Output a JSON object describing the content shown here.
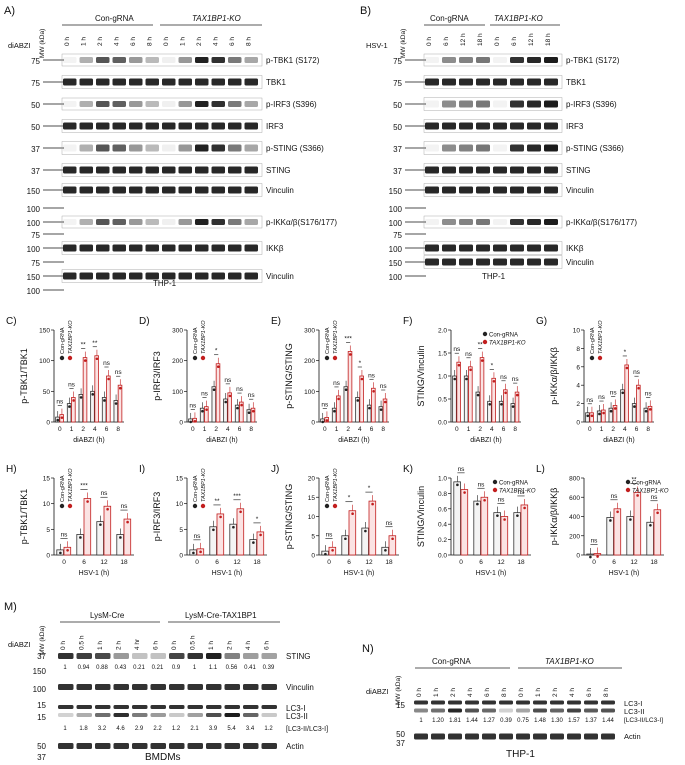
{
  "colors": {
    "con": "#222222",
    "ko": "#c21e1e",
    "band": "#1c1c1c"
  },
  "panel_a": {
    "letter": "A)",
    "mw": "MW (kDa)",
    "groups": [
      "Con-gRNA",
      "TAX1BP1-KO"
    ],
    "treat": "diABZI",
    "times": [
      "0 h",
      "1 h",
      "2 h",
      "4 h",
      "6 h",
      "8 h"
    ],
    "cell": "THP-1",
    "rows": [
      {
        "mw": "75",
        "label": "p-TBK1 (S172)"
      },
      {
        "mw": "75",
        "label": "TBK1"
      },
      {
        "mw": "50",
        "label": "p-IRF3 (S396)"
      },
      {
        "mw": "50",
        "label": "IRF3"
      },
      {
        "mw": "37",
        "label": "p-STING (S366)"
      },
      {
        "mw": "37",
        "label": "STING"
      },
      {
        "mw": "150",
        "label": "Vinculin"
      },
      {
        "mw": "100",
        "label": ""
      },
      {
        "mw": "100",
        "label": "p-IKKα/β(S176/177)"
      },
      {
        "mw": "75",
        "label": ""
      },
      {
        "mw": "100",
        "label": "IKKβ"
      },
      {
        "mw": "75",
        "label": ""
      },
      {
        "mw": "150",
        "label": "Vinculin"
      },
      {
        "mw": "100",
        "label": ""
      }
    ]
  },
  "panel_b": {
    "letter": "B)",
    "mw": "MW (kDa)",
    "groups": [
      "Con-gRNA",
      "TAX1BP1-KO"
    ],
    "treat": "HSV-1",
    "times": [
      "0 h",
      "6 h",
      "12 h",
      "18 h"
    ],
    "cell": "THP-1",
    "rows": [
      {
        "mw": "75",
        "label": "p-TBK1 (S172)"
      },
      {
        "mw": "75",
        "label": "TBK1"
      },
      {
        "mw": "50",
        "label": "p-IRF3 (S396)"
      },
      {
        "mw": "50",
        "label": "IRF3"
      },
      {
        "mw": "37",
        "label": "p-STING (S366)"
      },
      {
        "mw": "37",
        "label": "STING"
      },
      {
        "mw": "150",
        "label": "Vinculin"
      },
      {
        "mw": "100",
        "label": ""
      },
      {
        "mw": "100",
        "label": "p-IKKα/β(S176/177)"
      },
      {
        "mw": "75",
        "label": ""
      },
      {
        "mw": "100",
        "label": "IKKβ"
      },
      {
        "mw": "150",
        "label": "Vinculin"
      },
      {
        "mw": "100",
        "label": ""
      }
    ]
  },
  "chart_data": [
    {
      "panel": "C)",
      "type": "bar",
      "ylabel": "p-TBK1/TBK1",
      "xlabel": "diABZI (h)",
      "categories": [
        "0",
        "1",
        "2",
        "4",
        "6",
        "8"
      ],
      "ylim": [
        0,
        150
      ],
      "yticks": [
        "0",
        "50",
        "100",
        "150"
      ],
      "legend": [
        "Con-gRNA",
        "TAX1BP1-KO"
      ],
      "series": [
        {
          "name": "Con-gRNA",
          "values": [
            8,
            30,
            45,
            50,
            40,
            35
          ]
        },
        {
          "name": "TAX1BP1-KO",
          "values": [
            12,
            40,
            105,
            108,
            75,
            60
          ]
        }
      ],
      "sig": [
        "ns",
        "ns",
        "**",
        "**",
        "ns",
        "ns"
      ]
    },
    {
      "panel": "D)",
      "type": "bar",
      "ylabel": "p-IRF3/IRF3",
      "xlabel": "diABZI (h)",
      "categories": [
        "0",
        "1",
        "2",
        "4",
        "6",
        "8"
      ],
      "ylim": [
        0,
        300
      ],
      "yticks": [
        "0",
        "100",
        "200",
        "300"
      ],
      "legend": [
        "Con-gRNA",
        "TAX1BP1-KO"
      ],
      "series": [
        {
          "name": "Con-gRNA",
          "values": [
            10,
            45,
            115,
            75,
            55,
            40
          ]
        },
        {
          "name": "TAX1BP1-KO",
          "values": [
            12,
            50,
            190,
            95,
            65,
            45
          ]
        }
      ],
      "sig": [
        "ns",
        "ns",
        "*",
        "ns",
        "ns",
        "ns"
      ]
    },
    {
      "panel": "E)",
      "type": "bar",
      "ylabel": "p-STING/STING",
      "xlabel": "diABZI (h)",
      "categories": [
        "0",
        "1",
        "2",
        "4",
        "6",
        "8"
      ],
      "ylim": [
        0,
        300
      ],
      "yticks": [
        "0",
        "100",
        "200",
        "300"
      ],
      "legend": [
        "Con-gRNA",
        "TAX1BP1-KO"
      ],
      "series": [
        {
          "name": "Con-gRNA",
          "values": [
            10,
            45,
            115,
            80,
            55,
            50
          ]
        },
        {
          "name": "TAX1BP1-KO",
          "values": [
            15,
            85,
            230,
            150,
            110,
            75
          ]
        }
      ],
      "sig": [
        "ns",
        "ns",
        "***",
        "*",
        "ns",
        "ns"
      ]
    },
    {
      "panel": "F)",
      "type": "bar",
      "ylabel": "STING/Vinculin",
      "xlabel": "diABZI (h)",
      "categories": [
        "0",
        "1",
        "2",
        "4",
        "6",
        "8"
      ],
      "ylim": [
        0,
        2.0
      ],
      "yticks": [
        "0.0",
        "0.5",
        "1.0",
        "1.5",
        "2.0"
      ],
      "legend": [
        "Con-gRNA",
        "TAX1BP1-KO"
      ],
      "series": [
        {
          "name": "Con-gRNA",
          "values": [
            1.0,
            1.0,
            0.65,
            0.45,
            0.45,
            0.4
          ]
        },
        {
          "name": "TAX1BP1-KO",
          "values": [
            1.3,
            1.2,
            1.4,
            0.95,
            0.7,
            0.65
          ]
        }
      ],
      "sig": [
        "ns",
        "ns",
        "**",
        "*",
        "ns",
        "ns"
      ]
    },
    {
      "panel": "G)",
      "type": "bar",
      "ylabel": "p-IKKα/β/IKKβ",
      "xlabel": "diABZI (h)",
      "categories": [
        "0",
        "1",
        "2",
        "4",
        "6",
        "8"
      ],
      "ylim": [
        0,
        10
      ],
      "yticks": [
        "0",
        "2",
        "4",
        "6",
        "8",
        "10"
      ],
      "legend": [
        "Con-gRNA",
        "TAX1BP1-KO"
      ],
      "series": [
        {
          "name": "Con-gRNA",
          "values": [
            1,
            1.2,
            1.5,
            3.5,
            2,
            1.5
          ]
        },
        {
          "name": "TAX1BP1-KO",
          "values": [
            1,
            1.3,
            1.8,
            6.2,
            4,
            1.7
          ]
        }
      ],
      "sig": [
        "ns",
        "ns",
        "ns",
        "*",
        "ns",
        "ns"
      ]
    },
    {
      "panel": "H)",
      "type": "bar",
      "ylabel": "p-TBK1/TBK1",
      "xlabel": "HSV-1 (h)",
      "categories": [
        "0",
        "6",
        "12",
        "18"
      ],
      "ylim": [
        0,
        15
      ],
      "yticks": [
        "0",
        "5",
        "10",
        "15"
      ],
      "legend": [
        "Con-gRNA",
        "TAX1BP1-KO"
      ],
      "series": [
        {
          "name": "Con-gRNA",
          "values": [
            1,
            4,
            6.5,
            4
          ]
        },
        {
          "name": "TAX1BP1-KO",
          "values": [
            1.5,
            11,
            9.5,
            7
          ]
        }
      ],
      "sig": [
        "ns",
        "***",
        "ns",
        "ns"
      ]
    },
    {
      "panel": "I)",
      "type": "bar",
      "ylabel": "p-IRF3/IRF3",
      "xlabel": "HSV-1 (h)",
      "categories": [
        "0",
        "6",
        "12",
        "18"
      ],
      "ylim": [
        0,
        15
      ],
      "yticks": [
        "0",
        "5",
        "10",
        "15"
      ],
      "legend": [
        "Con-gRNA",
        "TAX1BP1-KO"
      ],
      "series": [
        {
          "name": "Con-gRNA",
          "values": [
            1,
            5.5,
            6,
            3
          ]
        },
        {
          "name": "TAX1BP1-KO",
          "values": [
            1.2,
            8,
            9,
            4.5
          ]
        }
      ],
      "sig": [
        "ns",
        "**",
        "***",
        "*"
      ]
    },
    {
      "panel": "J)",
      "type": "bar",
      "ylabel": "p-STING/STING",
      "xlabel": "HSV-1 (h)",
      "categories": [
        "0",
        "6",
        "12",
        "18"
      ],
      "ylim": [
        0,
        20
      ],
      "yticks": [
        "0",
        "5",
        "10",
        "15",
        "20"
      ],
      "legend": [
        "Con-gRNA",
        "TAX1BP1-KO"
      ],
      "series": [
        {
          "name": "Con-gRNA",
          "values": [
            1,
            5,
            7,
            2
          ]
        },
        {
          "name": "TAX1BP1-KO",
          "values": [
            2,
            11.5,
            14,
            5
          ]
        }
      ],
      "sig": [
        "ns",
        "*",
        "*",
        "ns"
      ]
    },
    {
      "panel": "K)",
      "type": "bar",
      "ylabel": "STING/Vinculin",
      "xlabel": "HSV-1 (h)",
      "categories": [
        "0",
        "6",
        "12",
        "18"
      ],
      "ylim": [
        0,
        1.0
      ],
      "yticks": [
        "0.0",
        "0.2",
        "0.4",
        "0.6",
        "0.8",
        "1.0"
      ],
      "legend": [
        "Con-gRNA",
        "TAX1BP1-KO"
      ],
      "series": [
        {
          "name": "Con-gRNA",
          "values": [
            0.95,
            0.7,
            0.55,
            0.55
          ]
        },
        {
          "name": "TAX1BP1-KO",
          "values": [
            0.85,
            0.75,
            0.5,
            0.65
          ]
        }
      ],
      "sig": [
        "ns",
        "ns",
        "ns",
        "ns"
      ]
    },
    {
      "panel": "L)",
      "type": "bar",
      "ylabel": "p-IKKα/β/IKKβ",
      "xlabel": "HSV-1 (h)",
      "categories": [
        "0",
        "6",
        "12",
        "18"
      ],
      "ylim": [
        0,
        800
      ],
      "yticks": [
        "0",
        "200",
        "400",
        "600",
        "800"
      ],
      "legend": [
        "Con-gRNA",
        "TAX1BP1-KO"
      ],
      "series": [
        {
          "name": "Con-gRNA",
          "values": [
            10,
            390,
            400,
            340
          ]
        },
        {
          "name": "TAX1BP1-KO",
          "values": [
            15,
            480,
            650,
            470
          ]
        }
      ],
      "sig": [
        "ns",
        "ns",
        "**",
        "ns"
      ]
    }
  ],
  "panel_m": {
    "letter": "M)",
    "mw": "MW (kDa)",
    "groups": [
      "LysM-Cre",
      "LysM-Cre-TAX1BP1"
    ],
    "treat": "diABZI",
    "times": [
      "0 h",
      "0.5 h",
      "1 h",
      "2 h",
      "4 hr",
      "6 h",
      "0 h",
      "0.5 h",
      "1 h",
      "2 h",
      "4 h",
      "6 h"
    ],
    "cell": "BMDMs",
    "rows": [
      {
        "mw": "37",
        "label": "STING"
      },
      {
        "mw": "100",
        "label": "Vinculin"
      },
      {
        "mw": "15",
        "label": "LC3-I"
      },
      {
        "mw": "15",
        "label": "LC3-II"
      },
      {
        "mw": "50",
        "label": "Actin"
      }
    ],
    "extra_mw": [
      "150",
      "37"
    ],
    "sting_values": [
      "1",
      "0.94",
      "0.88",
      "0.43",
      "0.21",
      "0.21",
      "0.9",
      "1",
      "1.1",
      "0.56",
      "0.41",
      "0.39"
    ],
    "lc3_values": [
      "1",
      "1.8",
      "3.2",
      "4.6",
      "2.9",
      "2.2",
      "1.2",
      "2.1",
      "3.9",
      "5.4",
      "3.4",
      "1.2"
    ],
    "lc3_ratio_label": "[LC3-II/LC3-I]"
  },
  "panel_n": {
    "letter": "N)",
    "mw": "MW (kDa)",
    "groups": [
      "Con-gRNA",
      "TAX1BP1-KO"
    ],
    "treat": "diABZI",
    "times": [
      "0 h",
      "1 h",
      "2 h",
      "4 h",
      "6 h",
      "8 h",
      "0 h",
      "1 h",
      "2 h",
      "4 h",
      "6 h",
      "8 h"
    ],
    "cell": "THP-1",
    "rows": [
      {
        "mw": "15",
        "label": "LC3-I"
      },
      {
        "mw": "",
        "label": "LC3-II"
      },
      {
        "mw": "50",
        "label": "Actin"
      }
    ],
    "extra_mw": [
      "37"
    ],
    "lc3_values": [
      "1",
      "1.20",
      "1.81",
      "1.44",
      "1.27",
      "0.39",
      "0.75",
      "1.48",
      "1.30",
      "1.57",
      "1.37",
      "1.44"
    ],
    "lc3_ratio_label": "[LC3-II/LC3-I]"
  }
}
